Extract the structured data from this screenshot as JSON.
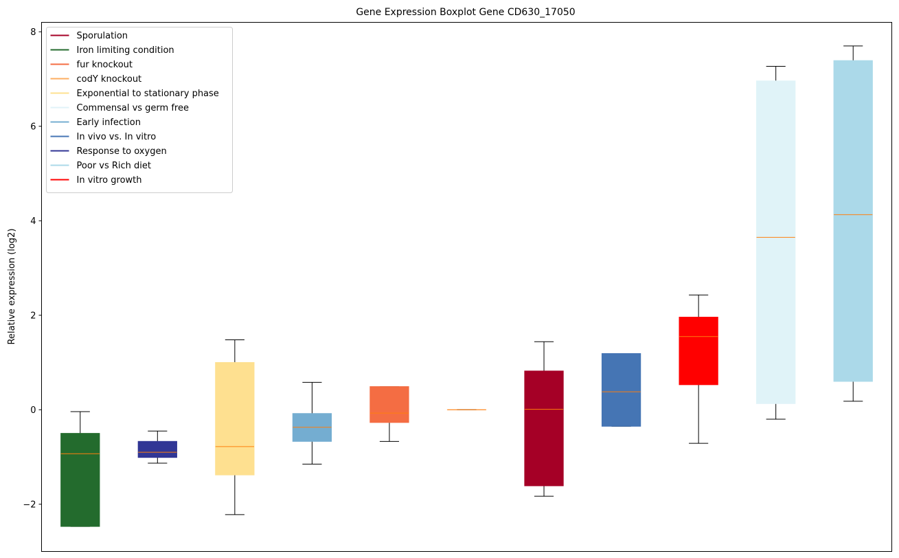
{
  "chart_data": {
    "type": "boxplot",
    "title": "Gene Expression Boxplot Gene CD630_17050",
    "xlabel": "",
    "ylabel": "Relative expression (log2)",
    "ylim": [
      -3.0,
      8.2
    ],
    "yticks": [
      -2,
      0,
      2,
      4,
      6,
      8
    ],
    "ytick_labels": [
      "−2",
      "0",
      "2",
      "4",
      "6",
      "8"
    ],
    "median_color": "#ff7f0e",
    "legend_loc": "upper-left",
    "legend": [
      {
        "label": "Sporulation",
        "color": "#a50026"
      },
      {
        "label": "Iron limiting condition",
        "color": "#236b2d"
      },
      {
        "label": "fur knockout",
        "color": "#f46d43"
      },
      {
        "label": "codY knockout",
        "color": "#fdae61"
      },
      {
        "label": "Exponential to stationary phase",
        "color": "#fee090"
      },
      {
        "label": "Commensal vs germ free",
        "color": "#e0f3f8"
      },
      {
        "label": "Early infection",
        "color": "#74add1"
      },
      {
        "label": "In vivo vs. In vitro",
        "color": "#4575b4"
      },
      {
        "label": "Response to oxygen",
        "color": "#313695"
      },
      {
        "label": "Poor vs Rich diet",
        "color": "#abd9e9"
      },
      {
        "label": "In vitro growth",
        "color": "#ff0000"
      }
    ],
    "boxes": [
      {
        "group": "Iron limiting condition",
        "color": "#236b2d",
        "whisker_low": -2.47,
        "q1": -2.47,
        "median": -0.93,
        "q3": -0.5,
        "whisker_high": -0.04
      },
      {
        "group": "Response to oxygen",
        "color": "#313695",
        "whisker_low": -1.13,
        "q1": -1.01,
        "median": -0.9,
        "q3": -0.67,
        "whisker_high": -0.45
      },
      {
        "group": "Exponential to stationary phase",
        "color": "#fee090",
        "whisker_low": -2.22,
        "q1": -1.38,
        "median": -0.78,
        "q3": 1.0,
        "whisker_high": 1.48
      },
      {
        "group": "Early infection",
        "color": "#74add1",
        "whisker_low": -1.15,
        "q1": -0.67,
        "median": -0.37,
        "q3": -0.08,
        "whisker_high": 0.58
      },
      {
        "group": "fur knockout",
        "color": "#f46d43",
        "whisker_low": -0.67,
        "q1": -0.27,
        "median": -0.07,
        "q3": 0.49,
        "whisker_high": 0.49
      },
      {
        "group": "codY knockout",
        "color": "#fdae61",
        "whisker_low": 0.0,
        "q1": 0.0,
        "median": 0.0,
        "q3": 0.0,
        "whisker_high": 0.0
      },
      {
        "group": "Sporulation",
        "color": "#a50026",
        "whisker_low": -1.83,
        "q1": -1.61,
        "median": 0.01,
        "q3": 0.82,
        "whisker_high": 1.44
      },
      {
        "group": "In vivo vs. In vitro",
        "color": "#4575b4",
        "whisker_low": -0.35,
        "q1": -0.35,
        "median": 0.38,
        "q3": 1.19,
        "whisker_high": 1.19
      },
      {
        "group": "In vitro growth",
        "color": "#ff0000",
        "whisker_low": -0.71,
        "q1": 0.53,
        "median": 1.55,
        "q3": 1.96,
        "whisker_high": 2.43
      },
      {
        "group": "Commensal vs germ free",
        "color": "#e0f3f8",
        "whisker_low": -0.2,
        "q1": 0.13,
        "median": 3.65,
        "q3": 6.96,
        "whisker_high": 7.27
      },
      {
        "group": "Poor vs Rich diet",
        "color": "#abd9e9",
        "whisker_low": 0.18,
        "q1": 0.6,
        "median": 4.13,
        "q3": 7.39,
        "whisker_high": 7.7
      }
    ]
  }
}
